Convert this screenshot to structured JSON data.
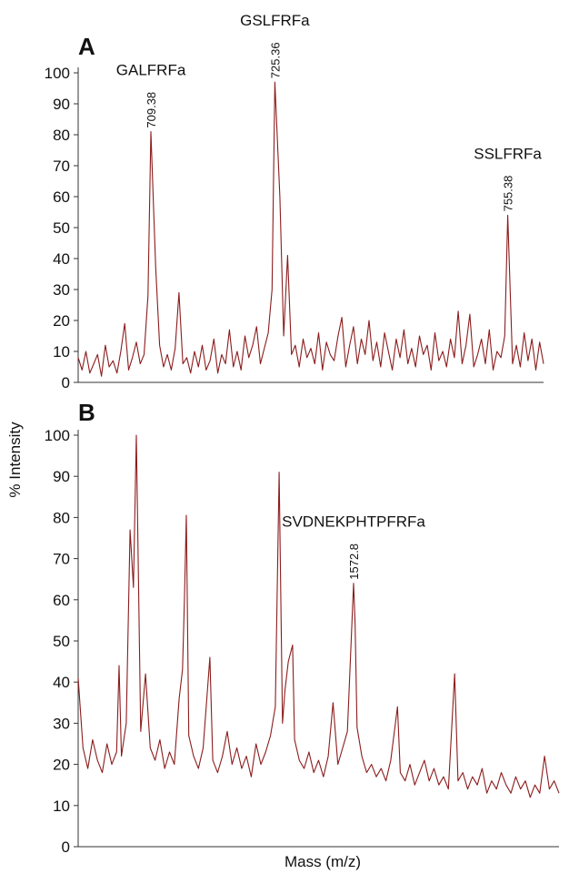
{
  "chart_data": [
    {
      "type": "line",
      "panel_label": "A",
      "color": "#8b1c1c",
      "xlim": [
        700,
        760
      ],
      "ylim": [
        0,
        100
      ],
      "yticks": [
        0,
        10,
        20,
        30,
        40,
        50,
        60,
        70,
        80,
        90,
        100
      ],
      "x": [
        700,
        700.5,
        701,
        701.5,
        702,
        702.5,
        703,
        703.5,
        704,
        704.5,
        705,
        705.5,
        706,
        706.5,
        707,
        707.5,
        708,
        708.5,
        709,
        709.38,
        710,
        710.5,
        711,
        711.5,
        712,
        712.5,
        713,
        713.5,
        714,
        714.5,
        715,
        715.5,
        716,
        716.5,
        717,
        717.5,
        718,
        718.5,
        719,
        719.5,
        720,
        720.5,
        721,
        721.5,
        722,
        722.5,
        723,
        723.5,
        724,
        724.5,
        725,
        725.36,
        726,
        726.5,
        727,
        727.5,
        728,
        728.5,
        729,
        729.5,
        730,
        730.5,
        731,
        731.5,
        732,
        732.5,
        733,
        733.5,
        734,
        734.5,
        735,
        735.5,
        736,
        736.5,
        737,
        737.5,
        738,
        738.5,
        739,
        739.5,
        740,
        740.5,
        741,
        741.5,
        742,
        742.5,
        743,
        743.5,
        744,
        744.5,
        745,
        745.5,
        746,
        746.5,
        747,
        747.5,
        748,
        748.5,
        749,
        749.5,
        750,
        750.5,
        751,
        751.5,
        752,
        752.5,
        753,
        753.5,
        754,
        754.5,
        755,
        755.38,
        756,
        756.5,
        757,
        757.5,
        758,
        758.5,
        759,
        759.5,
        760
      ],
      "values": [
        8,
        4,
        10,
        3,
        6,
        9,
        2,
        12,
        5,
        7,
        3,
        10,
        19,
        4,
        8,
        13,
        6,
        9,
        28,
        81,
        37,
        12,
        5,
        9,
        4,
        11,
        29,
        6,
        8,
        3,
        10,
        5,
        12,
        4,
        7,
        14,
        3,
        9,
        6,
        17,
        5,
        10,
        4,
        15,
        8,
        12,
        18,
        6,
        11,
        16,
        30,
        97,
        60,
        15,
        41,
        9,
        12,
        5,
        14,
        8,
        11,
        6,
        16,
        4,
        13,
        9,
        7,
        15,
        21,
        5,
        12,
        18,
        6,
        14,
        9,
        20,
        7,
        13,
        5,
        16,
        10,
        4,
        14,
        8,
        17,
        6,
        11,
        5,
        15,
        9,
        12,
        4,
        16,
        7,
        10,
        5,
        14,
        8,
        23,
        6,
        12,
        22,
        5,
        9,
        14,
        6,
        17,
        4,
        10,
        8,
        15,
        54,
        6,
        12,
        5,
        16,
        7,
        14,
        4,
        13,
        6
      ],
      "annotations": [
        {
          "text": "GALFRFa",
          "mass": 709.38,
          "height": 81
        },
        {
          "text": "GSLFRFa",
          "mass": 725.36,
          "height": 97
        },
        {
          "text": "SSLFRFa",
          "mass": 755.38,
          "height": 54
        }
      ]
    },
    {
      "type": "line",
      "panel_label": "B",
      "color": "#8b1c1c",
      "xlim": [
        1000,
        2000
      ],
      "ylim": [
        0,
        100
      ],
      "yticks": [
        0,
        10,
        20,
        30,
        40,
        50,
        60,
        70,
        80,
        90,
        100
      ],
      "x": [
        1000,
        1010,
        1020,
        1030,
        1040,
        1050,
        1060,
        1070,
        1080,
        1085,
        1090,
        1100,
        1108,
        1115,
        1121,
        1130,
        1140,
        1150,
        1160,
        1170,
        1180,
        1190,
        1200,
        1210,
        1217,
        1221,
        1225,
        1230,
        1240,
        1250,
        1260,
        1274,
        1280,
        1290,
        1300,
        1310,
        1320,
        1330,
        1340,
        1350,
        1360,
        1370,
        1380,
        1390,
        1400,
        1410,
        1418,
        1425,
        1430,
        1437,
        1446,
        1450,
        1460,
        1470,
        1480,
        1490,
        1500,
        1510,
        1520,
        1530,
        1540,
        1550,
        1560,
        1572.8,
        1576,
        1580,
        1590,
        1600,
        1610,
        1620,
        1630,
        1640,
        1650,
        1664,
        1670,
        1680,
        1690,
        1700,
        1710,
        1720,
        1730,
        1740,
        1750,
        1760,
        1770,
        1783,
        1790,
        1800,
        1810,
        1820,
        1830,
        1840,
        1850,
        1860,
        1870,
        1880,
        1890,
        1900,
        1910,
        1920,
        1930,
        1940,
        1950,
        1960,
        1970,
        1980,
        1990,
        2000
      ],
      "values": [
        41,
        24,
        19,
        26,
        21,
        18,
        25,
        20,
        23,
        44,
        22,
        30,
        77,
        63,
        100,
        28,
        42,
        24,
        21,
        26,
        19,
        23,
        20,
        36,
        43,
        60,
        80.5,
        27,
        22,
        19,
        24,
        46,
        21,
        18,
        22,
        28,
        20,
        24,
        19,
        22,
        17,
        25,
        20,
        23,
        27,
        34,
        91,
        30,
        38,
        45,
        49,
        26,
        21,
        19,
        23,
        18,
        21,
        17,
        22,
        35,
        20,
        24,
        28,
        64,
        54,
        29,
        22,
        18,
        20,
        17,
        19,
        16,
        21,
        34,
        18,
        16,
        20,
        15,
        18,
        21,
        16,
        19,
        15,
        17,
        14,
        42,
        16,
        18,
        14,
        17,
        15,
        19,
        13,
        16,
        14,
        18,
        15,
        13,
        17,
        14,
        16,
        12,
        15,
        13,
        22,
        14,
        16,
        13
      ],
      "annotations": [
        {
          "text": "SVDNEKPHTPFRFa",
          "mass": 1572.8,
          "height": 64
        }
      ]
    }
  ],
  "y_label": "% Intensity",
  "x_label": "Mass (m/z)"
}
